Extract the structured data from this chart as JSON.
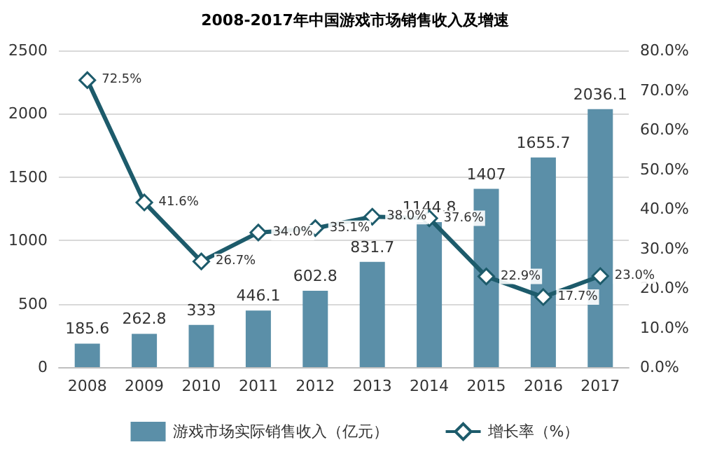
{
  "chart_data": {
    "type": "bar",
    "title": "2008-2017年中国游戏市场销售收入及增速",
    "categories": [
      "2008",
      "2009",
      "2010",
      "2011",
      "2012",
      "2013",
      "2014",
      "2015",
      "2016",
      "2017"
    ],
    "series": [
      {
        "name": "游戏市场实际销售收入（亿元）",
        "color": "#5b8fa8",
        "values": [
          185.6,
          262.8,
          333,
          446.1,
          602.8,
          831.7,
          1144.8,
          1407,
          1655.7,
          2036.1
        ]
      },
      {
        "name": "增长率（%）",
        "type": "line",
        "axis": "y2",
        "color": "#1d5b6b",
        "marker": "diamond",
        "values": [
          72.5,
          41.6,
          26.7,
          34.0,
          35.1,
          38.0,
          37.6,
          22.9,
          17.7,
          23.0
        ],
        "value_labels": [
          "72.5%",
          "41.6%",
          "26.7%",
          "34.0%",
          "35.1%",
          "38.0%",
          "37.6%",
          "22.9%",
          "17.7%",
          "23.0%"
        ]
      }
    ],
    "data_labels": true,
    "ylim": [
      0,
      2500
    ],
    "yticks": [
      0,
      500,
      1000,
      1500,
      2000,
      2500
    ],
    "y2lim": [
      0,
      80
    ],
    "y2ticks": [
      {
        "value": 0,
        "label": "0.0%"
      },
      {
        "value": 10,
        "label": "10.0%"
      },
      {
        "value": 20,
        "label": "20.0%"
      },
      {
        "value": 30,
        "label": "30.0%"
      },
      {
        "value": 40,
        "label": "40.0%"
      },
      {
        "value": 50,
        "label": "50.0%"
      },
      {
        "value": 60,
        "label": "60.0%"
      },
      {
        "value": 70,
        "label": "70.0%"
      },
      {
        "value": 80,
        "label": "80.0%"
      }
    ],
    "grid": "y",
    "legend": "bottom"
  }
}
